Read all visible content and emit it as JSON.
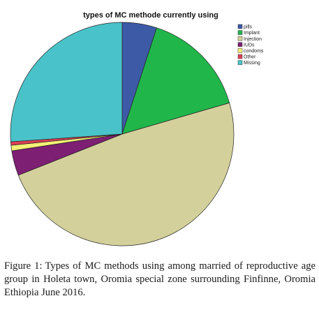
{
  "chart_data": {
    "type": "pie",
    "title": "types of MC methode currently using",
    "slices": [
      {
        "label": "pills",
        "value": 5.0,
        "color": "#3d5aa7"
      },
      {
        "label": "Implant",
        "value": 15.5,
        "color": "#21b64a"
      },
      {
        "label": "Injection",
        "value": 48.5,
        "color": "#d3d09b"
      },
      {
        "label": "IUDs",
        "value": 3.6,
        "color": "#7d1f73"
      },
      {
        "label": "condoms",
        "value": 0.8,
        "color": "#f4f176"
      },
      {
        "label": "Other",
        "value": 0.5,
        "color": "#dd3f55"
      },
      {
        "label": "Missing",
        "value": 26.1,
        "color": "#49c3c9"
      }
    ],
    "start_angle_deg": 0,
    "direction": "clockwise",
    "legend_position": "top-right"
  },
  "caption": {
    "label": "Figure 1:",
    "text": "Types of MC methods using among married of reproductive age group in Holeta town, Oromia special zone surrounding Finfinne, Oromia Ethiopia June 2016."
  }
}
